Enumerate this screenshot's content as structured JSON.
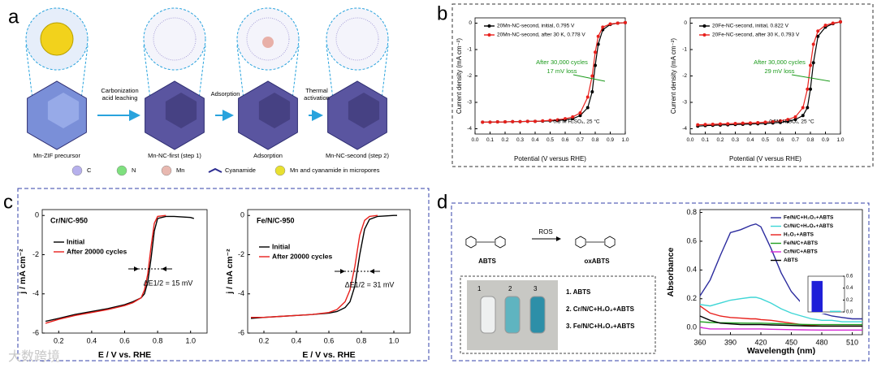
{
  "panel_labels": [
    "a",
    "b",
    "c",
    "d"
  ],
  "watermark": "大数跨境",
  "diagram": {
    "steps": [
      "Mn-ZIF precursor",
      "Mn-NC-first (step 1)",
      "Adsorption",
      "Mn-NC-second (step 2)"
    ],
    "arrows": [
      [
        "Carbonization",
        "acid leaching"
      ],
      [
        "Adsorption"
      ],
      [
        "Thermal",
        "activation"
      ]
    ],
    "legend": [
      "C",
      "N",
      "Mn",
      "Cyanamide",
      "Mn and cyanamide in micropores"
    ]
  },
  "scheme": {
    "reactant": "ABTS",
    "reagent": "ROS",
    "product": "oxABTS",
    "vials": [
      "1",
      "2",
      "3"
    ],
    "list": [
      "1. ABTS",
      "2. Cr/N/C+H₂O₂+ABTS",
      "3. Fe/N/C+H₂O₂+ABTS"
    ]
  },
  "chart_data": [
    {
      "type": "line",
      "markers": true,
      "legend": "upper left",
      "xlabel": "Potential (V versus RHE)",
      "ylabel": "Current density (mA cm⁻²)",
      "annotations": [
        "After 30,000 cycles",
        "17 mV loss",
        "0.5 M H₂SO₄, 25 °C"
      ],
      "xlim": [
        0,
        1
      ],
      "xticks": [
        {
          "value": 0,
          "label": "0.0"
        },
        0.1,
        0.2,
        0.3,
        0.4,
        0.5,
        0.6,
        0.7,
        0.8,
        0.9,
        {
          "value": 1,
          "label": "1.0"
        }
      ],
      "ylim": [
        -4.2,
        0.2
      ],
      "yticks": [
        0,
        -1,
        -2,
        -3,
        -4
      ],
      "x": [
        0.05,
        0.1,
        0.15,
        0.2,
        0.25,
        0.3,
        0.35,
        0.4,
        0.45,
        0.5,
        0.55,
        0.6,
        0.65,
        0.7,
        0.75,
        0.78,
        0.8,
        0.82,
        0.85,
        0.9,
        0.95,
        1.0
      ],
      "series": [
        {
          "name": "20Mn-NC-second, initial, 0.795 V",
          "color": "#000000",
          "values": [
            -3.75,
            -3.75,
            -3.74,
            -3.74,
            -3.73,
            -3.73,
            -3.72,
            -3.72,
            -3.71,
            -3.7,
            -3.69,
            -3.66,
            -3.62,
            -3.5,
            -3.2,
            -2.6,
            -1.6,
            -0.8,
            -0.25,
            -0.05,
            0.0,
            0.02
          ]
        },
        {
          "name": "20Mn-NC-second, after 30 K, 0.778 V",
          "color": "#e8201c",
          "values": [
            -3.75,
            -3.75,
            -3.74,
            -3.74,
            -3.73,
            -3.73,
            -3.72,
            -3.72,
            -3.7,
            -3.68,
            -3.66,
            -3.62,
            -3.55,
            -3.4,
            -2.8,
            -2.0,
            -1.1,
            -0.5,
            -0.15,
            -0.03,
            0.0,
            0.02
          ]
        }
      ]
    },
    {
      "type": "line",
      "markers": true,
      "legend": "upper left",
      "xlabel": "Potential (V versus RHE)",
      "ylabel": "Current density (mA cm⁻²)",
      "annotations": [
        "After 30,000 cycles",
        "29 mV loss",
        "0.5M H₂SO₄, 25 °C"
      ],
      "xlim": [
        0,
        1
      ],
      "xticks": [
        {
          "value": 0,
          "label": "0.0"
        },
        0.1,
        0.2,
        0.3,
        0.4,
        0.5,
        0.6,
        0.7,
        0.8,
        0.9,
        {
          "value": 1,
          "label": "1.0"
        }
      ],
      "ylim": [
        -4.2,
        0.2
      ],
      "yticks": [
        0,
        -1,
        -2,
        -3,
        -4
      ],
      "x": [
        0.05,
        0.1,
        0.15,
        0.2,
        0.25,
        0.3,
        0.35,
        0.4,
        0.45,
        0.5,
        0.55,
        0.6,
        0.65,
        0.7,
        0.75,
        0.78,
        0.8,
        0.82,
        0.85,
        0.9,
        0.95,
        1.0
      ],
      "series": [
        {
          "name": "20Fe-NC-second, initial, 0.822 V",
          "color": "#000000",
          "values": [
            -3.9,
            -3.88,
            -3.87,
            -3.86,
            -3.85,
            -3.84,
            -3.83,
            -3.82,
            -3.81,
            -3.8,
            -3.78,
            -3.76,
            -3.72,
            -3.65,
            -3.5,
            -3.2,
            -2.5,
            -1.5,
            -0.5,
            -0.15,
            -0.02,
            0.05
          ]
        },
        {
          "name": "20Fe-NC-second, after 30 K, 0.793 V",
          "color": "#e8201c",
          "values": [
            -3.85,
            -3.84,
            -3.83,
            -3.82,
            -3.81,
            -3.8,
            -3.79,
            -3.78,
            -3.77,
            -3.75,
            -3.73,
            -3.7,
            -3.65,
            -3.55,
            -3.2,
            -2.5,
            -1.6,
            -0.8,
            -0.3,
            -0.08,
            0.0,
            0.05
          ]
        }
      ]
    },
    {
      "type": "line",
      "legend": "upper left",
      "title": "Cr/N/C-950",
      "xlabel": "E / V vs. RHE",
      "ylabel": "j / mA cm⁻²",
      "annotations": [
        "ΔE1/2 = 15 mV"
      ],
      "xlim": [
        0.1,
        1.1
      ],
      "xticks": [
        0.2,
        0.4,
        0.6,
        0.8,
        {
          "value": 1,
          "label": "1.0"
        }
      ],
      "ylim": [
        -6,
        0.3
      ],
      "yticks": [
        0,
        -2,
        -4,
        -6
      ],
      "x": [
        0.12,
        0.2,
        0.3,
        0.4,
        0.5,
        0.6,
        0.65,
        0.7,
        0.72,
        0.74,
        0.76,
        0.78,
        0.8,
        0.85,
        0.9,
        1.0,
        1.02
      ],
      "series": [
        {
          "name": "Initial",
          "color": "#000000",
          "values": [
            -5.4,
            -5.25,
            -5.05,
            -4.9,
            -4.75,
            -4.55,
            -4.4,
            -4.2,
            -4.0,
            -3.4,
            -2.2,
            -0.8,
            -0.15,
            -0.05,
            -0.05,
            -0.1,
            -0.15
          ]
        },
        {
          "name": "After 20000 cycles",
          "color": "#e8201c",
          "values": [
            -5.5,
            -5.3,
            -5.1,
            -4.95,
            -4.8,
            -4.6,
            -4.45,
            -4.2,
            -3.8,
            -3.0,
            -1.6,
            -0.4,
            -0.05,
            0.0,
            null,
            null,
            null
          ]
        }
      ]
    },
    {
      "type": "line",
      "legend": "upper left",
      "title": "Fe/N/C-950",
      "xlabel": "E / V vs. RHE",
      "ylabel": "j / mA cm⁻²",
      "annotations": [
        "ΔE1/2 = 31 mV"
      ],
      "xlim": [
        0.1,
        1.1
      ],
      "xticks": [
        0.2,
        0.4,
        0.6,
        0.8,
        {
          "value": 1,
          "label": "1.0"
        }
      ],
      "ylim": [
        -6,
        0.3
      ],
      "yticks": [
        0,
        -2,
        -4,
        -6
      ],
      "x": [
        0.12,
        0.2,
        0.3,
        0.4,
        0.5,
        0.6,
        0.65,
        0.7,
        0.73,
        0.76,
        0.79,
        0.82,
        0.85,
        0.9,
        1.0,
        1.02
      ],
      "series": [
        {
          "name": "Initial",
          "color": "#000000",
          "values": [
            -5.25,
            -5.2,
            -5.15,
            -5.1,
            -5.05,
            -4.98,
            -4.9,
            -4.7,
            -4.4,
            -3.6,
            -2.0,
            -0.7,
            -0.2,
            -0.05,
            0.0,
            0.0
          ]
        },
        {
          "name": "After 20000 cycles",
          "color": "#e8201c",
          "values": [
            -5.2,
            -5.2,
            -5.15,
            -5.1,
            -5.05,
            -4.95,
            -4.8,
            -4.4,
            -3.8,
            -2.6,
            -1.0,
            -0.25,
            -0.05,
            0.0,
            null,
            null
          ]
        }
      ]
    },
    {
      "type": "line",
      "legend": "upper right",
      "xlabel": "Wavelength (nm)",
      "ylabel": "Absorbance",
      "xlim": [
        360,
        520
      ],
      "xticks": [
        360,
        390,
        420,
        450,
        480,
        510
      ],
      "ylim": [
        -0.05,
        0.82
      ],
      "yticks": [
        {
          "value": 0,
          "label": "0.0"
        },
        0.2,
        0.4,
        0.6,
        0.8
      ],
      "x": [
        360,
        370,
        380,
        390,
        400,
        410,
        415,
        420,
        430,
        440,
        450,
        460,
        470,
        480,
        490,
        500,
        510,
        520
      ],
      "series": [
        {
          "name": "Fe/N/C+H₂O₂+ABTS",
          "color": "#2b2b9e",
          "values": [
            0.22,
            0.33,
            0.5,
            0.66,
            0.68,
            0.71,
            0.72,
            0.7,
            0.55,
            0.38,
            0.25,
            0.17,
            0.12,
            0.1,
            0.08,
            0.07,
            0.06,
            0.06
          ]
        },
        {
          "name": "Cr/N/C+H₂O₂+ABTS",
          "color": "#3fd6d6",
          "values": [
            0.16,
            0.15,
            0.17,
            0.19,
            0.2,
            0.21,
            0.21,
            0.2,
            0.17,
            0.13,
            0.1,
            0.08,
            0.06,
            0.05,
            0.05,
            0.04,
            0.04,
            0.04
          ]
        },
        {
          "name": "H₂O₂+ABTS",
          "color": "#e8201c",
          "values": [
            0.15,
            0.1,
            0.08,
            0.07,
            0.065,
            0.06,
            0.06,
            0.055,
            0.05,
            0.04,
            0.03,
            0.02,
            0.015,
            0.01,
            0.01,
            0.01,
            0.01,
            0.01
          ]
        },
        {
          "name": "Fe/N/C+ABTS",
          "color": "#22a022",
          "values": [
            0.04,
            0.035,
            0.033,
            0.032,
            0.031,
            0.03,
            0.03,
            0.03,
            0.028,
            0.026,
            0.024,
            0.022,
            0.02,
            0.02,
            0.02,
            0.02,
            0.02,
            0.02
          ]
        },
        {
          "name": "Cr/N/C+ABTS",
          "color": "#d62ad6",
          "values": [
            0.0,
            -0.01,
            -0.01,
            -0.01,
            -0.01,
            -0.01,
            -0.01,
            -0.01,
            -0.012,
            -0.014,
            -0.015,
            -0.016,
            -0.017,
            -0.018,
            -0.018,
            -0.018,
            -0.018,
            -0.018
          ]
        },
        {
          "name": "ABTS",
          "color": "#000000",
          "values": [
            0.08,
            0.05,
            0.03,
            0.025,
            0.02,
            0.02,
            0.02,
            0.02,
            0.018,
            0.016,
            0.014,
            0.012,
            0.01,
            0.01,
            0.01,
            0.01,
            0.01,
            0.01
          ]
        }
      ]
    },
    {
      "type": "bar",
      "categories": [
        null,
        null
      ],
      "values": [
        0.52,
        0.02
      ],
      "colors": [
        "#1f1fd8",
        "#3fd6d6"
      ],
      "ylim": [
        0,
        0.6
      ],
      "yticks": [
        {
          "value": 0,
          "label": "0.0"
        },
        0.2,
        0.4,
        0.6
      ]
    }
  ]
}
